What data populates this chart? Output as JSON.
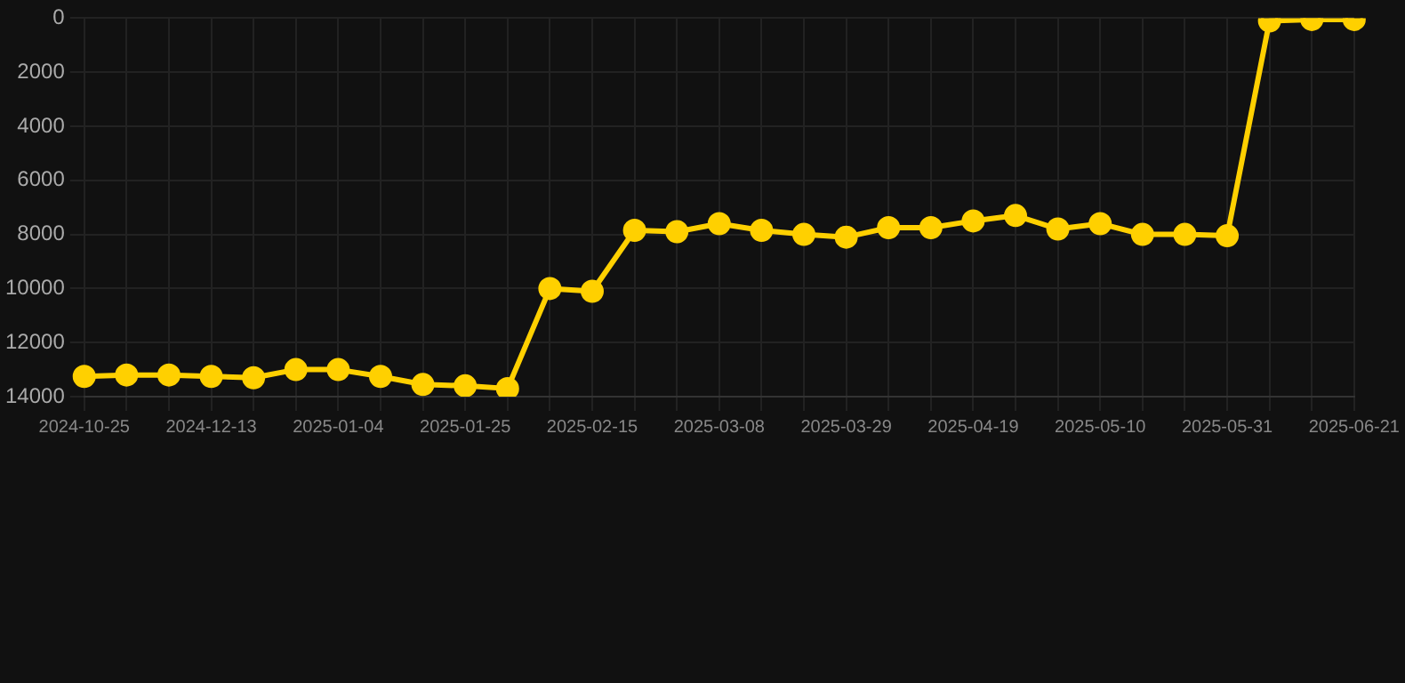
{
  "chart_data": {
    "type": "line",
    "categories": [
      "2024-10-25",
      null,
      null,
      "2024-12-13",
      null,
      null,
      "2025-01-04",
      null,
      null,
      "2025-01-25",
      null,
      null,
      "2025-02-15",
      null,
      null,
      "2025-03-08",
      null,
      null,
      "2025-03-29",
      null,
      null,
      "2025-04-19",
      null,
      null,
      "2025-05-10",
      null,
      null,
      "2025-05-31",
      null,
      null,
      "2025-06-21"
    ],
    "series": [
      {
        "color": "#ffd000",
        "values": [
          13250,
          13200,
          13200,
          13250,
          13300,
          13000,
          13000,
          13250,
          13550,
          13600,
          13700,
          10000,
          10100,
          7850,
          7900,
          7600,
          7850,
          8000,
          8100,
          7750,
          7750,
          7500,
          7300,
          7800,
          7600,
          8000,
          8000,
          8050,
          100,
          50,
          50
        ]
      }
    ],
    "ylim": [
      14000,
      0
    ],
    "yticks": [
      0,
      2000,
      4000,
      6000,
      8000,
      10000,
      12000,
      14000
    ],
    "grid": true,
    "legend": false,
    "marker": "circle",
    "line_style": "solid"
  }
}
